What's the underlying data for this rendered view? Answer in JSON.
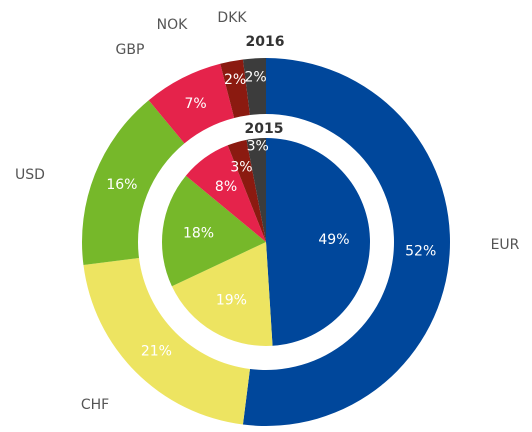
{
  "chart_data": {
    "type": "nested-donut",
    "categories": [
      "EUR",
      "CHF",
      "USD",
      "GBP",
      "NOK",
      "DKK"
    ],
    "colors": [
      "#00479b",
      "#ede461",
      "#76b82a",
      "#e5234b",
      "#8b1a10",
      "#3c3c3c"
    ],
    "series": [
      {
        "name": "2016",
        "values": [
          52,
          21,
          16,
          7,
          2,
          2
        ],
        "value_labels": [
          "52%",
          "21%",
          "16%",
          "7%",
          "2%",
          "2%"
        ]
      },
      {
        "name": "2015",
        "values": [
          49,
          19,
          18,
          8,
          3,
          3
        ],
        "value_labels": [
          "49%",
          "19%",
          "18%",
          "8%",
          "3%",
          "3%"
        ]
      }
    ]
  }
}
